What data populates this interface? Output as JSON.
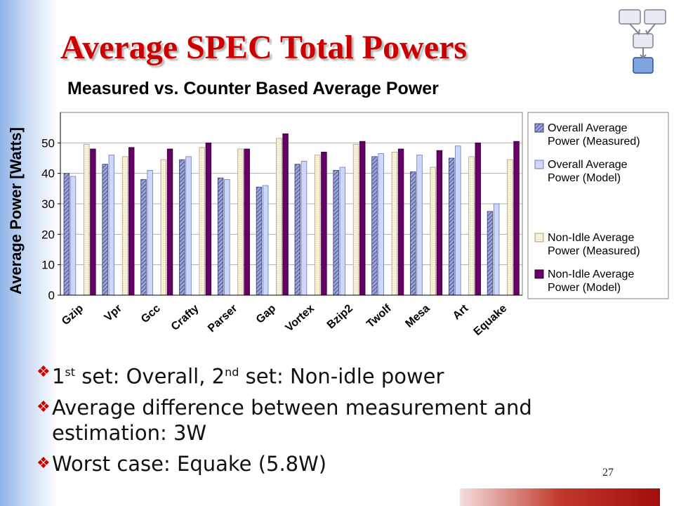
{
  "slide": {
    "title": "Average SPEC Total Powers",
    "page_number": "27",
    "bullets": [
      {
        "part1": "1",
        "sup1": "st",
        "part2": " set: Overall, 2",
        "sup2": "nd",
        "part3": " set: Non-idle power"
      },
      {
        "text": "Average difference between measurement and estimation: 3W"
      },
      {
        "text": "Worst case: Equake (5.8W)"
      }
    ]
  },
  "colors": {
    "title": "#cc0000",
    "overall_measured": "#6a75b8",
    "overall_model": "#ccd6ff",
    "nonidle_measured": "#fbf3dc",
    "nonidle_model": "#660066"
  },
  "chart_data": {
    "type": "bar",
    "title": "Measured vs. Counter Based Average Power",
    "xlabel": "",
    "ylabel": "Average Power [Watts]",
    "ylim": [
      0,
      60
    ],
    "yticks": [
      0,
      10,
      20,
      30,
      40,
      50
    ],
    "grid": true,
    "legend_position": "right",
    "categories": [
      "Gzip",
      "Vpr",
      "Gcc",
      "Crafty",
      "Parser",
      "Gap",
      "Vortex",
      "Bzip2",
      "Twolf",
      "Mesa",
      "Art",
      "Equake"
    ],
    "series": [
      {
        "name": "Overall Average Power (Measured)",
        "values": [
          40,
          43,
          38,
          44.5,
          38.5,
          35.5,
          43,
          41,
          45.5,
          40.5,
          45,
          27.5
        ]
      },
      {
        "name": "Overall Average Power (Model)",
        "values": [
          39,
          46,
          41,
          45.5,
          38,
          36,
          44,
          42,
          46.5,
          46,
          49,
          30
        ]
      },
      {
        "name": "Non-Idle Average Power (Measured)",
        "values": [
          49.5,
          45.5,
          44.5,
          48.5,
          48,
          51.5,
          46,
          49.5,
          47,
          42,
          45.5,
          44.5
        ]
      },
      {
        "name": "Non-Idle Average Power (Model)",
        "values": [
          48,
          48.5,
          48,
          50,
          48,
          53,
          47,
          50.5,
          48,
          47.5,
          50,
          50.5
        ]
      }
    ]
  }
}
